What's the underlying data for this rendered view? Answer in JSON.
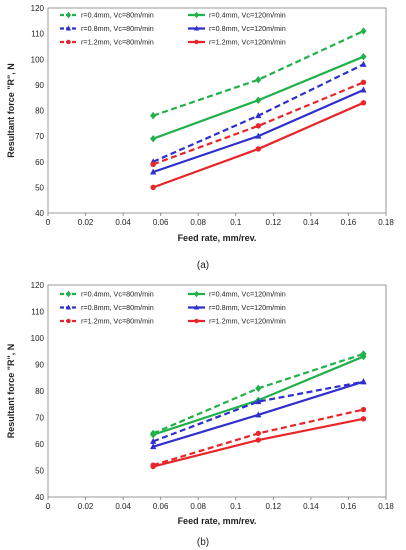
{
  "chart_data": [
    {
      "type": "line",
      "caption": "(a)",
      "xlabel": "Feed rate, mm/rev.",
      "ylabel": "Resultant force \"R\", N",
      "xlim": [
        0,
        0.18
      ],
      "ylim": [
        40,
        120
      ],
      "xticks": [
        "0",
        "0.02",
        "0.04",
        "0.06",
        "0.08",
        "0.1",
        "0.12",
        "0.14",
        "0.16",
        "0.18"
      ],
      "yticks": [
        "40",
        "50",
        "60",
        "70",
        "80",
        "90",
        "100",
        "110",
        "120"
      ],
      "grid": false,
      "legend_position": "top-left",
      "x": [
        0.056,
        0.112,
        0.168
      ],
      "series": [
        {
          "name": "r=0.4mm, Vc=80m/min",
          "values": [
            78,
            92,
            111
          ],
          "color": "#22b04b",
          "dash": "dashed",
          "marker": "diamond"
        },
        {
          "name": "r=0.4mm, Vc=120m/min",
          "values": [
            69,
            84,
            101
          ],
          "color": "#22b04b",
          "dash": "solid",
          "marker": "diamond"
        },
        {
          "name": "r=0.8mm, Vc=80m/min",
          "values": [
            60,
            78,
            98
          ],
          "color": "#2f2fd0",
          "dash": "dashed",
          "marker": "triangle"
        },
        {
          "name": "r=0.8mm, Vc=120m/min",
          "values": [
            56,
            70,
            88
          ],
          "color": "#2f2fd0",
          "dash": "solid",
          "marker": "triangle"
        },
        {
          "name": "r=1.2mm, Vc=80m/min",
          "values": [
            59,
            74,
            91
          ],
          "color": "#e8262a",
          "dash": "dashed",
          "marker": "circle"
        },
        {
          "name": "r=1.2mm, Vc=120m/min",
          "values": [
            50,
            65,
            83
          ],
          "color": "#e8262a",
          "dash": "solid",
          "marker": "circle"
        }
      ]
    },
    {
      "type": "line",
      "caption": "(b)",
      "xlabel": "Feed rate, mm/rev.",
      "ylabel": "Resultant force \"R\", N",
      "xlim": [
        0,
        0.18
      ],
      "ylim": [
        40,
        120
      ],
      "xticks": [
        "0",
        "0.02",
        "0.04",
        "0.06",
        "0.08",
        "0.1",
        "0.12",
        "0.14",
        "0.16",
        "0.18"
      ],
      "yticks": [
        "40",
        "50",
        "60",
        "70",
        "80",
        "90",
        "100",
        "110",
        "120"
      ],
      "grid": false,
      "legend_position": "top-left",
      "x": [
        0.056,
        0.112,
        0.168
      ],
      "series": [
        {
          "name": "r=0.4mm, Vc=80m/min",
          "values": [
            64,
            81,
            94
          ],
          "color": "#22b04b",
          "dash": "dashed",
          "marker": "diamond"
        },
        {
          "name": "r=0.4mm, Vc=120m/min",
          "values": [
            63.5,
            76.5,
            93
          ],
          "color": "#22b04b",
          "dash": "solid",
          "marker": "diamond"
        },
        {
          "name": "r=0.8mm, Vc=80m/min",
          "values": [
            61,
            76,
            83.5
          ],
          "color": "#2f2fd0",
          "dash": "dashed",
          "marker": "triangle"
        },
        {
          "name": "r=0.8mm, Vc=120m/min",
          "values": [
            59,
            71,
            83.5
          ],
          "color": "#2f2fd0",
          "dash": "solid",
          "marker": "triangle"
        },
        {
          "name": "r=1.2mm, Vc=80m/min",
          "values": [
            52,
            64,
            73
          ],
          "color": "#e8262a",
          "dash": "dashed",
          "marker": "circle"
        },
        {
          "name": "r=1.2mm, Vc=120m/min",
          "values": [
            51.5,
            61.5,
            69.5
          ],
          "color": "#e8262a",
          "dash": "solid",
          "marker": "circle"
        }
      ]
    }
  ]
}
